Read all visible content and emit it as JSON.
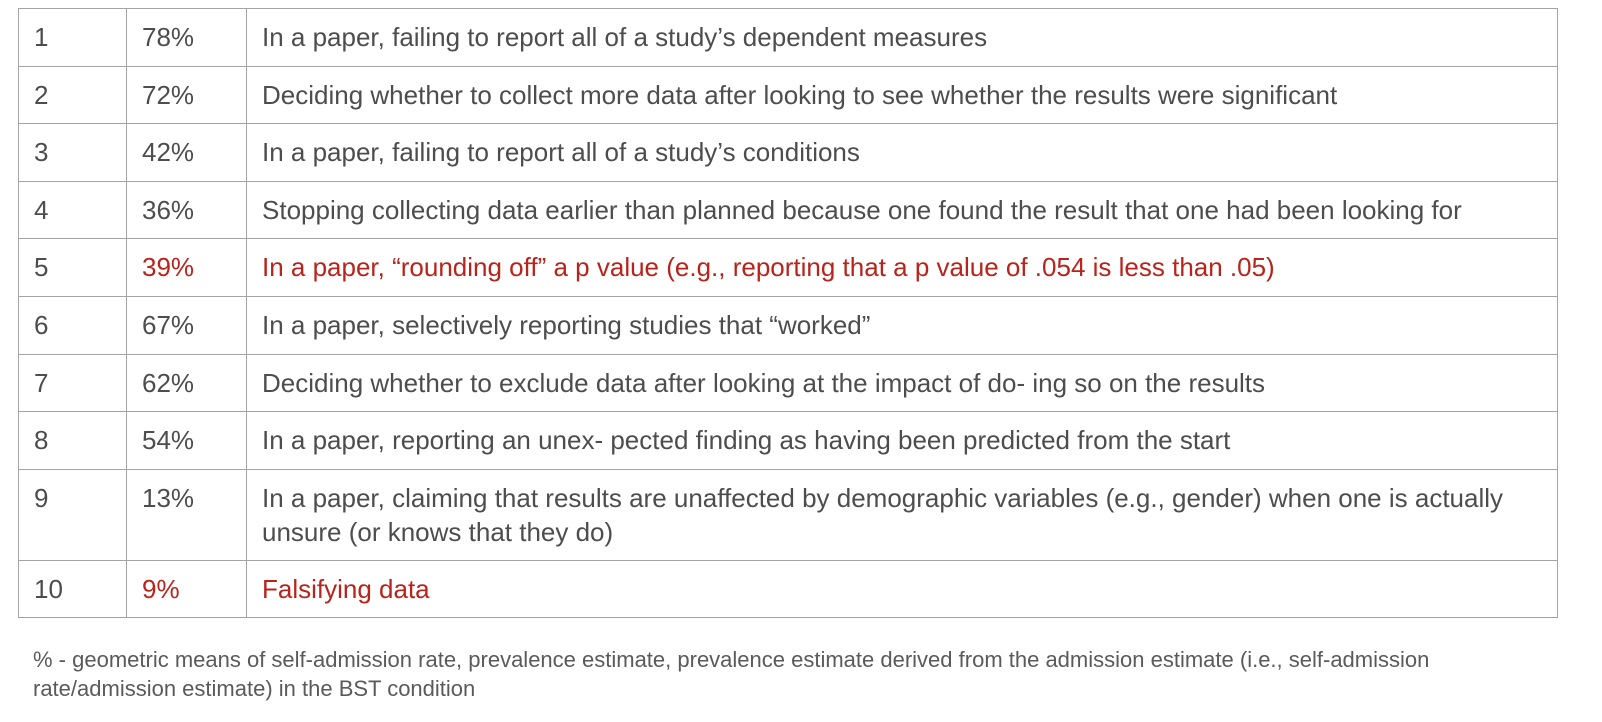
{
  "rows": [
    {
      "num": "1",
      "pct": "78%",
      "desc": "In a paper, failing to report all of a study’s dependent measures",
      "highlight": false
    },
    {
      "num": "2",
      "pct": "72%",
      "desc": "Deciding whether to collect more data after looking to see whether the results were significant",
      "highlight": false
    },
    {
      "num": "3",
      "pct": "42%",
      "desc": "In a paper, failing to report all of a study’s conditions",
      "highlight": false
    },
    {
      "num": "4",
      "pct": "36%",
      "desc": "Stopping collecting data earlier than planned because one found the result that one had been looking for",
      "highlight": false
    },
    {
      "num": "5",
      "pct": "39%",
      "desc": "In a paper, “rounding off” a p value (e.g., reporting that a p value of .054 is less than .05)",
      "highlight": true
    },
    {
      "num": "6",
      "pct": "67%",
      "desc": "In a paper, selectively reporting studies that “worked”",
      "highlight": false
    },
    {
      "num": "7",
      "pct": "62%",
      "desc": "Deciding whether to exclude data after looking at the impact of do- ing so on the results",
      "highlight": false
    },
    {
      "num": "8",
      "pct": "54%",
      "desc": "In a paper, reporting an unex- pected finding as having been predicted from the start",
      "highlight": false
    },
    {
      "num": "9",
      "pct": "13%",
      "desc": "In a paper, claiming that results are unaffected by demographic variables (e.g., gender) when one is actually unsure (or knows that they do)",
      "highlight": false
    },
    {
      "num": "10",
      "pct": "9%",
      "desc": "Falsifying data",
      "highlight": true
    }
  ],
  "colors": {
    "text": "#4d4d4d",
    "highlight": "#b8231b",
    "border": "#a3a3a3"
  },
  "footnote": "% - geometric means of self-admission rate, prevalence estimate, prevalence estimate derived from the admission estimate (i.e., self-admission rate/admission estimate) in the BST condition"
}
